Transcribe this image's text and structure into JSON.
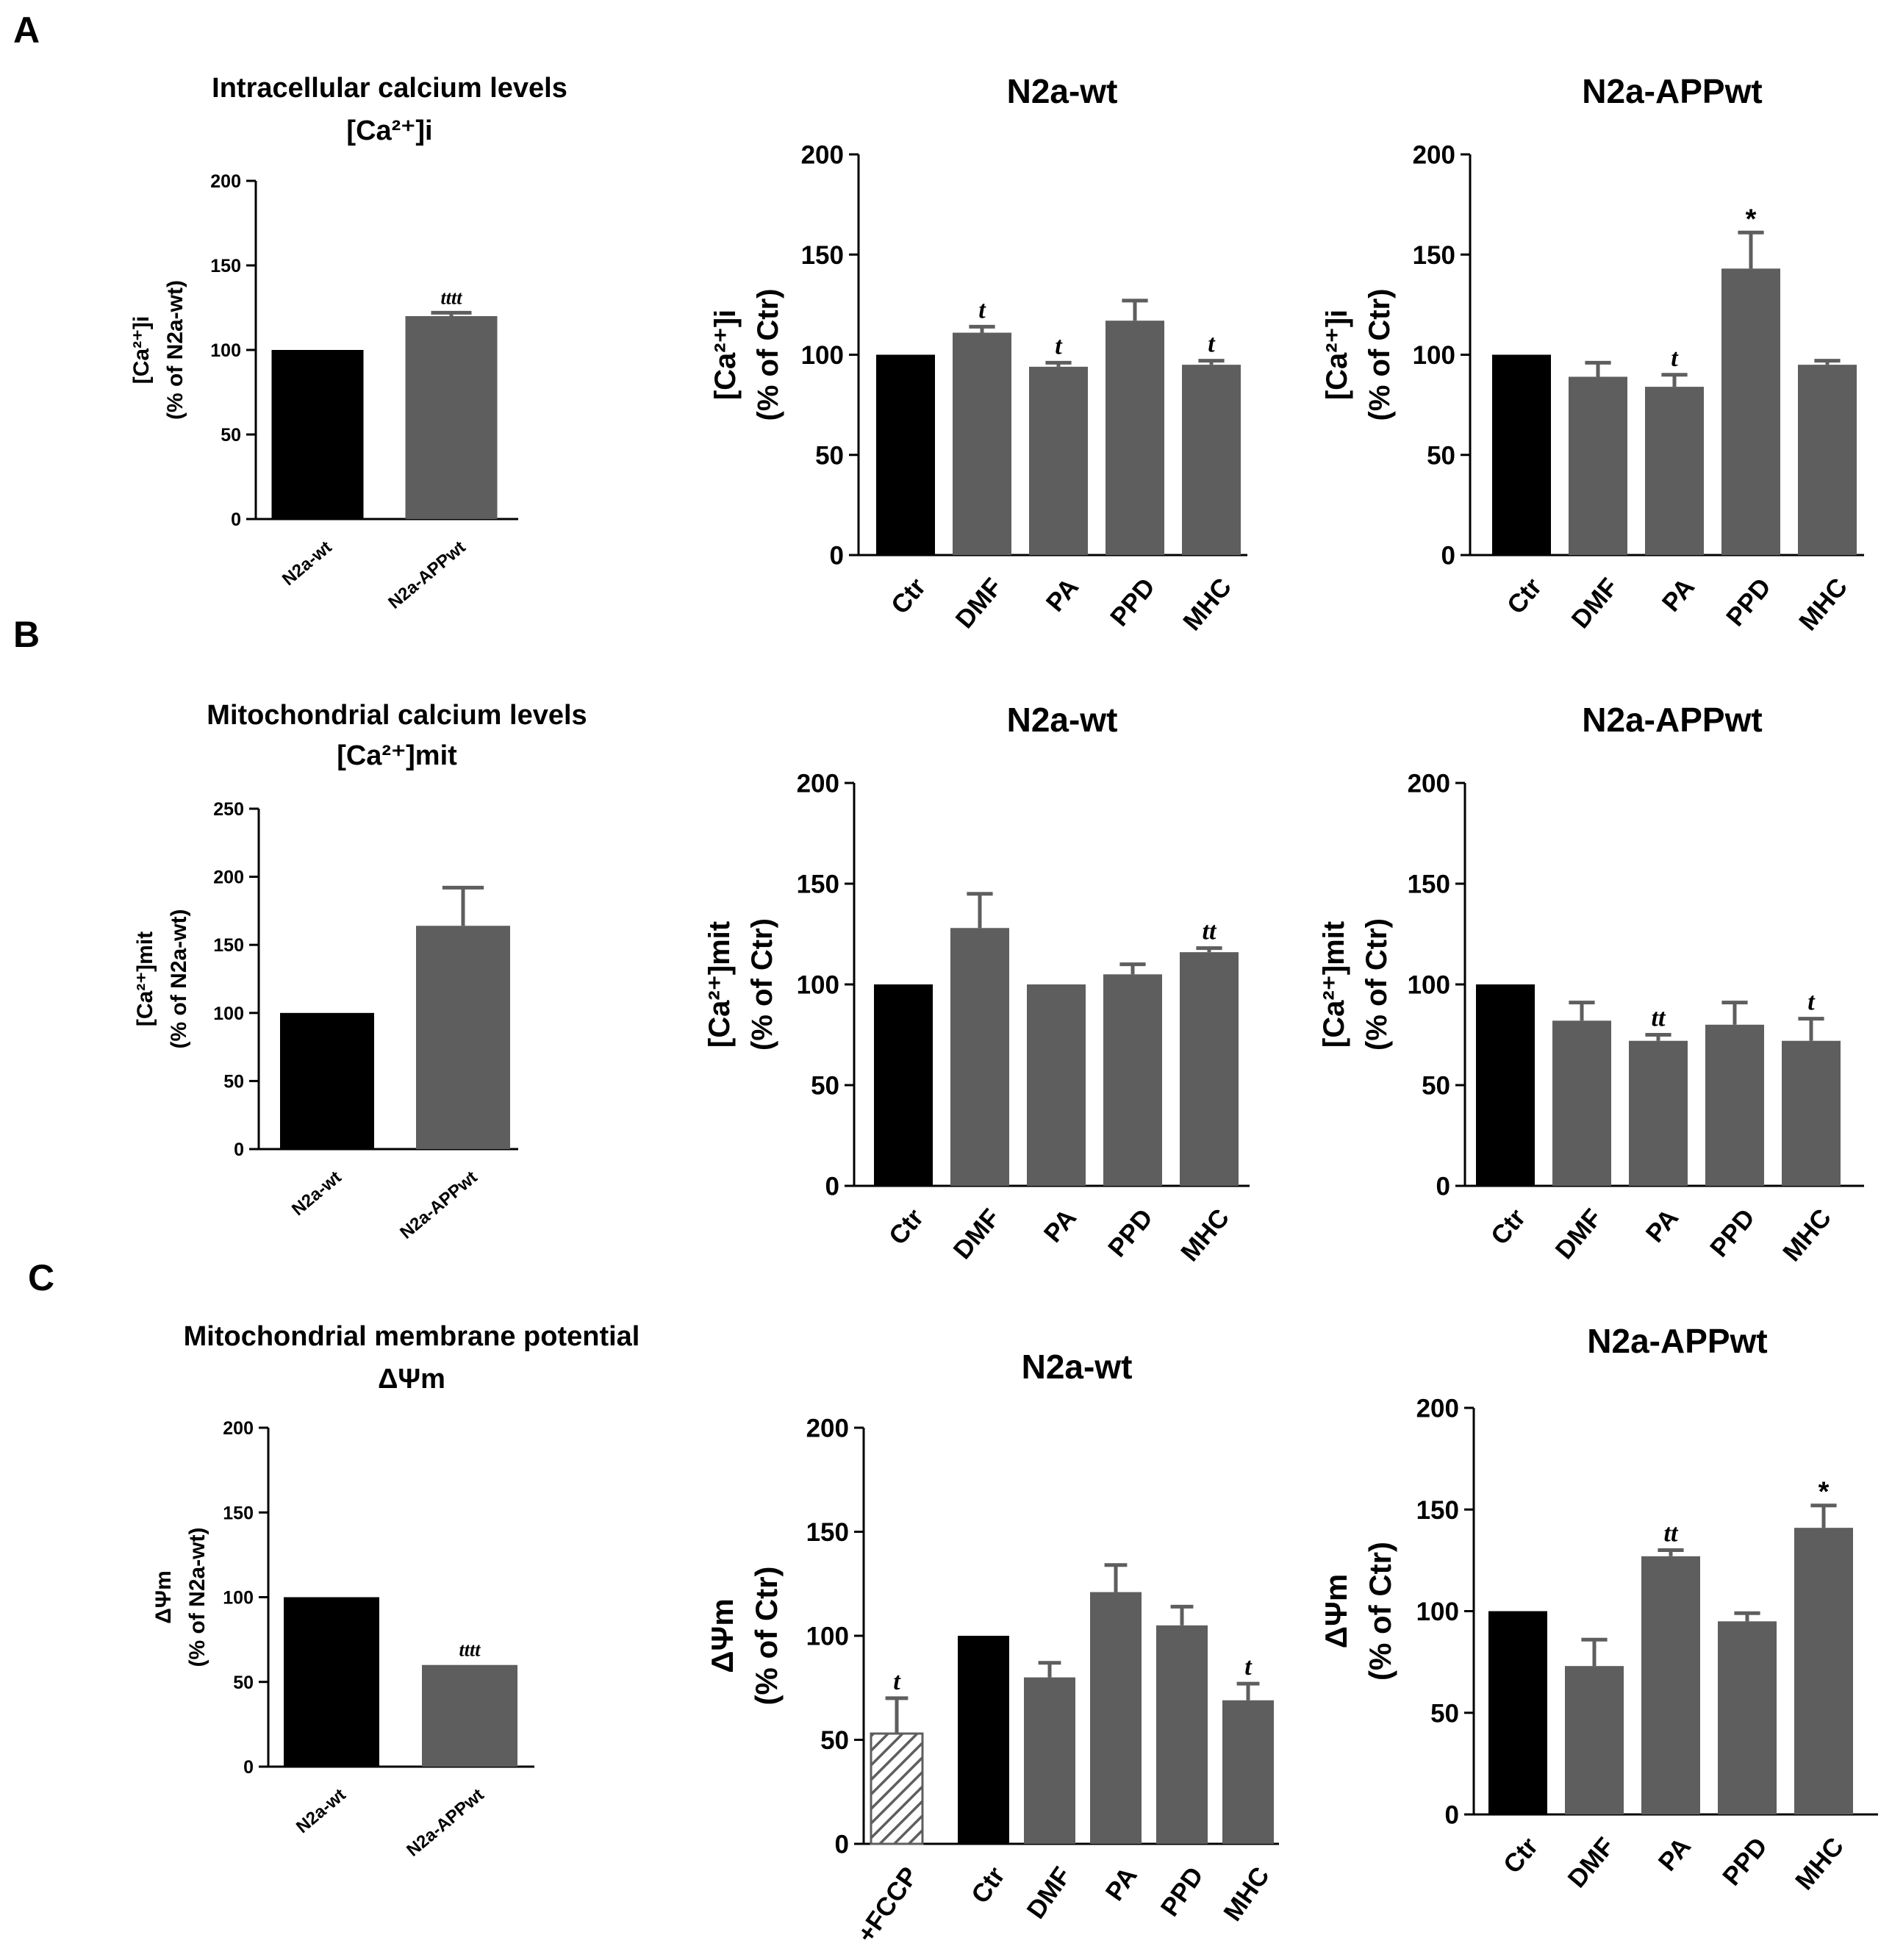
{
  "colors": {
    "control": "#000000",
    "treated": "#5e5e5e",
    "axis": "#000000",
    "hatch": "#5e5e5e"
  },
  "panel_letters": [
    "A",
    "B",
    "C"
  ],
  "chart_data": [
    {
      "id": "A1",
      "type": "bar",
      "panel": "A",
      "title": [
        "Intracellular calcium levels",
        "[Ca²⁺]i"
      ],
      "ylabel": [
        "[Ca²⁺]i",
        "(% of N2a-wt)"
      ],
      "ylim": [
        0,
        200
      ],
      "yticks": [
        0,
        50,
        100,
        150,
        200
      ],
      "categories": [
        "N2a-wt",
        "N2a-APPwt"
      ],
      "values": [
        100,
        120
      ],
      "errors": [
        0,
        2
      ],
      "annotations": [
        "",
        "tttt"
      ],
      "fills": [
        "control",
        "treated"
      ]
    },
    {
      "id": "A2",
      "type": "bar",
      "panel": "A",
      "title": [
        "N2a-wt"
      ],
      "ylabel": [
        "[Ca²⁺]i",
        "(% of Ctr)"
      ],
      "ylim": [
        0,
        200
      ],
      "yticks": [
        0,
        50,
        100,
        150,
        200
      ],
      "categories": [
        "Ctr",
        "DMF",
        "PA",
        "PPD",
        "MHC"
      ],
      "values": [
        100,
        111,
        94,
        117,
        95
      ],
      "errors": [
        0,
        3,
        2,
        10,
        2
      ],
      "annotations": [
        "",
        "t",
        "t",
        "",
        "t"
      ],
      "fills": [
        "control",
        "treated",
        "treated",
        "treated",
        "treated"
      ]
    },
    {
      "id": "A3",
      "type": "bar",
      "panel": "A",
      "title": [
        "N2a-APPwt"
      ],
      "ylabel": [
        "[Ca²⁺]i",
        "(% of Ctr)"
      ],
      "ylim": [
        0,
        200
      ],
      "yticks": [
        0,
        50,
        100,
        150,
        200
      ],
      "categories": [
        "Ctr",
        "DMF",
        "PA",
        "PPD",
        "MHC"
      ],
      "values": [
        100,
        89,
        84,
        143,
        95
      ],
      "errors": [
        0,
        7,
        6,
        18,
        2
      ],
      "annotations": [
        "",
        "",
        "t",
        "*",
        ""
      ],
      "fills": [
        "control",
        "treated",
        "treated",
        "treated",
        "treated"
      ]
    },
    {
      "id": "B1",
      "type": "bar",
      "panel": "B",
      "title": [
        "Mitochondrial calcium levels",
        "[Ca²⁺]mit"
      ],
      "ylabel": [
        "[Ca²⁺]mit",
        "(% of N2a-wt)"
      ],
      "ylim": [
        0,
        250
      ],
      "yticks": [
        0,
        50,
        100,
        150,
        200,
        250
      ],
      "categories": [
        "N2a-wt",
        "N2a-APPwt"
      ],
      "values": [
        100,
        164
      ],
      "errors": [
        0,
        28
      ],
      "annotations": [
        "",
        ""
      ],
      "fills": [
        "control",
        "treated"
      ]
    },
    {
      "id": "B2",
      "type": "bar",
      "panel": "B",
      "title": [
        "N2a-wt"
      ],
      "ylabel": [
        "[Ca²⁺]mit",
        "(% of Ctr)"
      ],
      "ylim": [
        0,
        200
      ],
      "yticks": [
        0,
        50,
        100,
        150,
        200
      ],
      "categories": [
        "Ctr",
        "DMF",
        "PA",
        "PPD",
        "MHC"
      ],
      "values": [
        100,
        128,
        100,
        105,
        116
      ],
      "errors": [
        0,
        17,
        0,
        5,
        2
      ],
      "annotations": [
        "",
        "",
        "",
        "",
        "tt"
      ],
      "fills": [
        "control",
        "treated",
        "treated",
        "treated",
        "treated"
      ]
    },
    {
      "id": "B3",
      "type": "bar",
      "panel": "B",
      "title": [
        "N2a-APPwt"
      ],
      "ylabel": [
        "[Ca²⁺]mit",
        "(% of Ctr)"
      ],
      "ylim": [
        0,
        200
      ],
      "yticks": [
        0,
        50,
        100,
        150,
        200
      ],
      "categories": [
        "Ctr",
        "DMF",
        "PA",
        "PPD",
        "MHC"
      ],
      "values": [
        100,
        82,
        72,
        80,
        72
      ],
      "errors": [
        0,
        9,
        3,
        11,
        11
      ],
      "annotations": [
        "",
        "",
        "tt",
        "",
        "t"
      ],
      "fills": [
        "control",
        "treated",
        "treated",
        "treated",
        "treated"
      ]
    },
    {
      "id": "C1",
      "type": "bar",
      "panel": "C",
      "title": [
        "Mitochondrial membrane potential",
        "ΔΨm"
      ],
      "ylabel": [
        "ΔΨm",
        "(% of N2a-wt)"
      ],
      "ylim": [
        0,
        200
      ],
      "yticks": [
        0,
        50,
        100,
        150,
        200
      ],
      "categories": [
        "N2a-wt",
        "N2a-APPwt"
      ],
      "values": [
        100,
        60
      ],
      "errors": [
        0,
        0
      ],
      "annotations": [
        "",
        "tttt"
      ],
      "fills": [
        "control",
        "treated"
      ]
    },
    {
      "id": "C2",
      "type": "bar",
      "panel": "C",
      "title": [
        "N2a-wt"
      ],
      "ylabel": [
        "ΔΨm",
        "(% of Ctr)"
      ],
      "ylim": [
        0,
        200
      ],
      "yticks": [
        0,
        50,
        100,
        150,
        200
      ],
      "categories": [
        "+FCCP",
        "Ctr",
        "DMF",
        "PA",
        "PPD",
        "MHC"
      ],
      "values": [
        53,
        100,
        80,
        121,
        105,
        69
      ],
      "errors": [
        17,
        0,
        7,
        13,
        9,
        8
      ],
      "annotations": [
        "t",
        "",
        "",
        "",
        "",
        "t"
      ],
      "fills": [
        "hatch",
        "control",
        "treated",
        "treated",
        "treated",
        "treated"
      ]
    },
    {
      "id": "C3",
      "type": "bar",
      "panel": "C",
      "title": [
        "N2a-APPwt"
      ],
      "ylabel": [
        "ΔΨm",
        "(% of Ctr)"
      ],
      "ylim": [
        0,
        200
      ],
      "yticks": [
        0,
        50,
        100,
        150,
        200
      ],
      "categories": [
        "Ctr",
        "DMF",
        "PA",
        "PPD",
        "MHC"
      ],
      "values": [
        100,
        73,
        127,
        95,
        141
      ],
      "errors": [
        0,
        13,
        3,
        4,
        11
      ],
      "annotations": [
        "",
        "",
        "tt",
        "",
        "*"
      ],
      "fills": [
        "control",
        "treated",
        "treated",
        "treated",
        "treated"
      ]
    }
  ]
}
